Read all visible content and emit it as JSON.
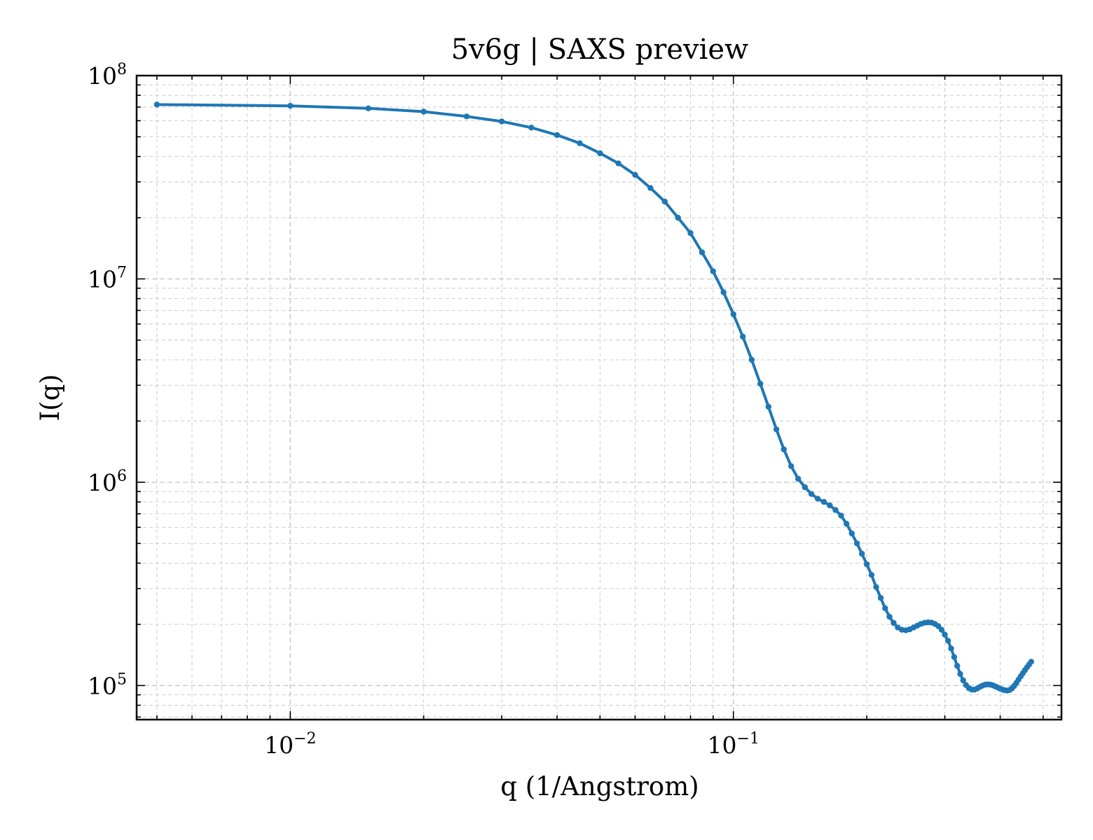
{
  "chart_data": {
    "type": "line",
    "title": "5v6g | SAXS preview",
    "xlabel": "q (1/Angstrom)",
    "ylabel": "I(q)",
    "xscale": "log",
    "yscale": "log",
    "xlim": [
      0.0045,
      0.55
    ],
    "ylim": [
      68000,
      100000000
    ],
    "grid": true,
    "legend": "none",
    "x_ticks": [
      {
        "value": 0.01,
        "base": "10",
        "exp": "−2"
      },
      {
        "value": 0.1,
        "base": "10",
        "exp": "−1"
      }
    ],
    "y_ticks": [
      {
        "value": 100000,
        "base": "10",
        "exp": "5"
      },
      {
        "value": 1000000,
        "base": "10",
        "exp": "6"
      },
      {
        "value": 10000000,
        "base": "10",
        "exp": "7"
      },
      {
        "value": 100000000,
        "base": "10",
        "exp": "8"
      }
    ],
    "series": [
      {
        "color": "#1f77b4",
        "points": [
          [
            0.005,
            72000000
          ],
          [
            0.01,
            71000000
          ],
          [
            0.015,
            69000000
          ],
          [
            0.02,
            66500000
          ],
          [
            0.025,
            63000000
          ],
          [
            0.03,
            59500000
          ],
          [
            0.035,
            55500000
          ],
          [
            0.04,
            51000000
          ],
          [
            0.045,
            46500000
          ],
          [
            0.05,
            41500000
          ],
          [
            0.055,
            37000000
          ],
          [
            0.06,
            32500000
          ],
          [
            0.065,
            28000000
          ],
          [
            0.07,
            24000000
          ],
          [
            0.075,
            20000000
          ],
          [
            0.08,
            16800000
          ],
          [
            0.085,
            13500000
          ],
          [
            0.09,
            10900000
          ],
          [
            0.095,
            8600000
          ],
          [
            0.1,
            6700000
          ],
          [
            0.105,
            5200000
          ],
          [
            0.11,
            4000000
          ],
          [
            0.115,
            3050000
          ],
          [
            0.12,
            2350000
          ],
          [
            0.125,
            1820000
          ],
          [
            0.13,
            1450000
          ],
          [
            0.135,
            1200000
          ],
          [
            0.14,
            1040000
          ],
          [
            0.145,
            945000
          ],
          [
            0.15,
            875000
          ],
          [
            0.155,
            830000
          ],
          [
            0.16,
            800000
          ],
          [
            0.165,
            770000
          ],
          [
            0.17,
            730000
          ],
          [
            0.175,
            685000
          ],
          [
            0.18,
            625000
          ],
          [
            0.185,
            560000
          ],
          [
            0.19,
            500000
          ],
          [
            0.195,
            445000
          ],
          [
            0.2,
            395000
          ],
          [
            0.205,
            350000
          ],
          [
            0.21,
            305000
          ],
          [
            0.215,
            270000
          ],
          [
            0.22,
            240000
          ],
          [
            0.225,
            218000
          ],
          [
            0.23,
            203000
          ],
          [
            0.235,
            193000
          ],
          [
            0.24,
            188000
          ],
          [
            0.245,
            187000
          ],
          [
            0.25,
            189000
          ],
          [
            0.255,
            193000
          ],
          [
            0.26,
            197000
          ],
          [
            0.265,
            201000
          ],
          [
            0.27,
            203500
          ],
          [
            0.275,
            204500
          ],
          [
            0.28,
            204000
          ],
          [
            0.285,
            201000
          ],
          [
            0.29,
            196000
          ],
          [
            0.295,
            188000
          ],
          [
            0.3,
            178000
          ],
          [
            0.305,
            166000
          ],
          [
            0.31,
            152000
          ],
          [
            0.315,
            138000
          ],
          [
            0.32,
            125000
          ],
          [
            0.325,
            114000
          ],
          [
            0.33,
            106000
          ],
          [
            0.335,
            100500
          ],
          [
            0.34,
            97000
          ],
          [
            0.345,
            95500
          ],
          [
            0.35,
            95500
          ],
          [
            0.355,
            96800
          ],
          [
            0.36,
            98500
          ],
          [
            0.365,
            100000
          ],
          [
            0.37,
            101000
          ],
          [
            0.375,
            101300
          ],
          [
            0.38,
            101000
          ],
          [
            0.385,
            100300
          ],
          [
            0.39,
            99000
          ],
          [
            0.395,
            97800
          ],
          [
            0.4,
            96500
          ],
          [
            0.405,
            95500
          ],
          [
            0.41,
            94800
          ],
          [
            0.415,
            94500
          ],
          [
            0.42,
            95000
          ],
          [
            0.425,
            96800
          ],
          [
            0.43,
            99500
          ],
          [
            0.435,
            103000
          ],
          [
            0.44,
            107000
          ],
          [
            0.445,
            111000
          ],
          [
            0.45,
            115000
          ],
          [
            0.455,
            119000
          ],
          [
            0.46,
            123000
          ],
          [
            0.465,
            127000
          ],
          [
            0.47,
            131000
          ]
        ]
      }
    ]
  }
}
